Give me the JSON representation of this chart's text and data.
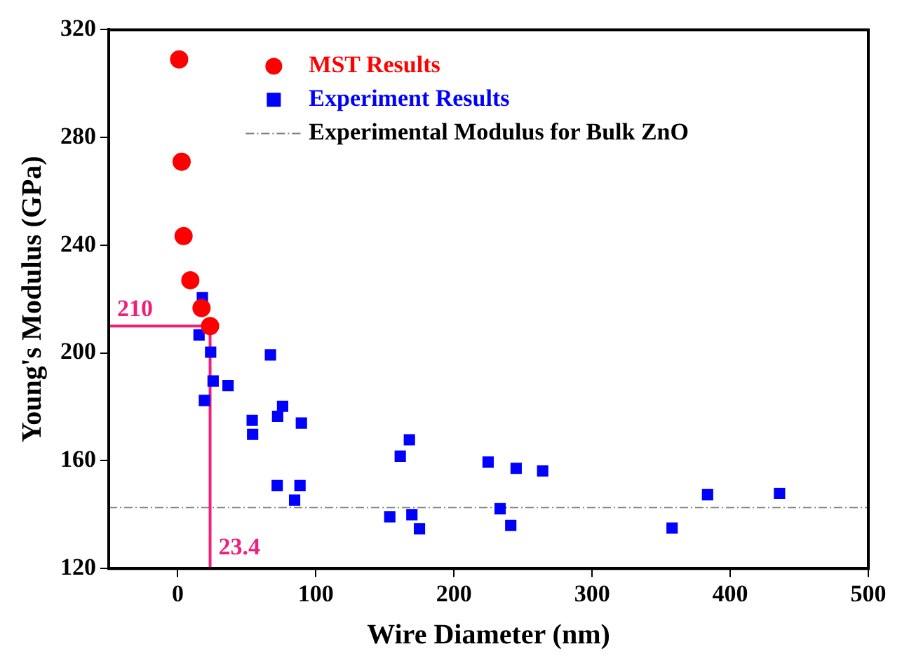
{
  "chart_data": {
    "type": "scatter",
    "xlabel": "Wire Diameter (nm)",
    "ylabel": "Young's Modulus (GPa)",
    "xlim": [
      -50,
      500
    ],
    "xticks": [
      0,
      100,
      200,
      300,
      400,
      500
    ],
    "ylim": [
      120,
      320
    ],
    "yticks": [
      120,
      160,
      200,
      240,
      280,
      320
    ],
    "grid": false,
    "legend": "top",
    "series": [
      {
        "name": "MST Results",
        "color": "#ff0000",
        "marker": "circle",
        "x": [
          1,
          2.8,
          4.2,
          9.1,
          17.2,
          23.4
        ],
        "values": [
          309,
          271,
          243.4,
          227,
          216.7,
          210
        ]
      },
      {
        "name": "Experiment Results",
        "color": "#0000ff",
        "marker": "square",
        "x": [
          15.4,
          17.8,
          19.3,
          23.8,
          25.6,
          36.4,
          53.9,
          54.2,
          67.1,
          72,
          72.3,
          75.9,
          84.6,
          88.5,
          89.5,
          153.5,
          161.1,
          167.7,
          169.5,
          175,
          224.7,
          233.4,
          241.1,
          245,
          264.2,
          357.9,
          383.6,
          435.7
        ],
        "values": [
          206.7,
          220.5,
          182.4,
          200.3,
          189.6,
          187.9,
          175,
          169.8,
          199.3,
          150.8,
          176.5,
          180.2,
          145.4,
          150.8,
          174,
          139.2,
          161.7,
          167.8,
          140,
          134.8,
          159.5,
          142.2,
          136,
          157.2,
          156.2,
          135,
          147.4,
          147.9
        ]
      }
    ],
    "ref_lines": [
      {
        "axis": "y",
        "value": 142.6,
        "label": "Experimental Modulus for Bulk ZnO",
        "color": "#808080",
        "line_style": "dashed"
      }
    ],
    "annotations": [
      {
        "text": "210",
        "x": 23.4,
        "y": 210
      },
      {
        "text": "23.4",
        "x": 23.4,
        "y": 210
      }
    ]
  }
}
